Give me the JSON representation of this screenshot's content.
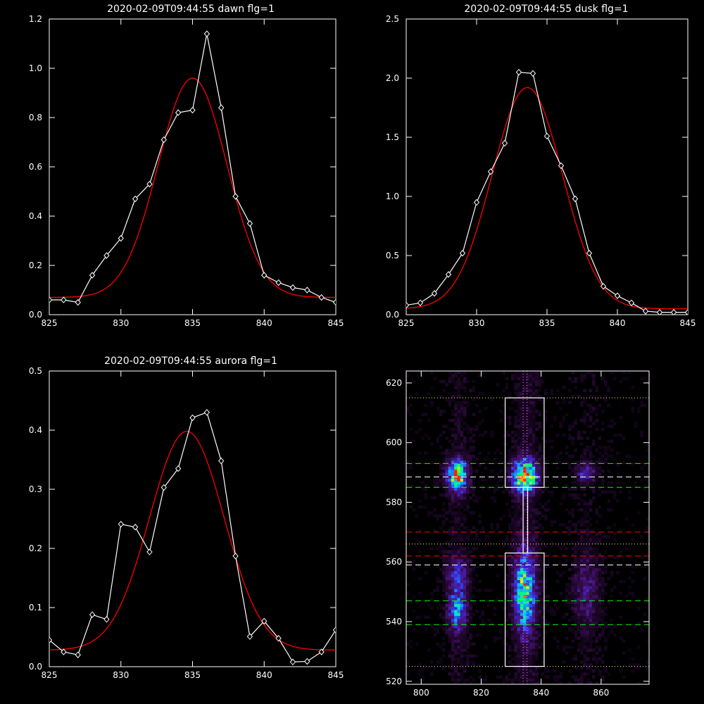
{
  "chart_data": [
    {
      "type": "line",
      "title": "2020-02-09T09:44:55 dawn flg=1",
      "xlim": [
        825,
        845
      ],
      "ylim": [
        0.0,
        1.2
      ],
      "xticks": [
        825,
        830,
        835,
        840,
        845
      ],
      "yticks": [
        "0.0",
        "0.2",
        "0.4",
        "0.6",
        "0.8",
        "1.0",
        "1.2"
      ],
      "series": [
        {
          "style": "white-line-diamonds",
          "color": "#ffffff",
          "x": [
            825,
            826,
            827,
            828,
            829,
            830,
            831,
            832,
            833,
            834,
            835,
            836,
            837,
            838,
            839,
            840,
            841,
            842,
            843,
            844,
            845
          ],
          "y": [
            0.06,
            0.06,
            0.05,
            0.16,
            0.24,
            0.31,
            0.47,
            0.53,
            0.71,
            0.82,
            0.83,
            1.14,
            0.84,
            0.48,
            0.37,
            0.16,
            0.13,
            0.11,
            0.1,
            0.07,
            0.05
          ]
        },
        {
          "style": "gaussian-fit",
          "color": "#ff0000",
          "gauss": {
            "amplitude": 0.89,
            "center": 835.0,
            "sigma": 2.4,
            "offset": 0.07
          }
        }
      ]
    },
    {
      "type": "line",
      "title": "2020-02-09T09:44:55 dusk flg=1",
      "xlim": [
        825,
        845
      ],
      "ylim": [
        0.0,
        2.5
      ],
      "xticks": [
        825,
        830,
        835,
        840,
        845
      ],
      "yticks": [
        "0.0",
        "0.5",
        "1.0",
        "1.5",
        "2.0",
        "2.5"
      ],
      "series": [
        {
          "style": "white-line-diamonds",
          "color": "#ffffff",
          "x": [
            825,
            826,
            827,
            828,
            829,
            830,
            831,
            832,
            833,
            834,
            835,
            836,
            837,
            838,
            839,
            840,
            841,
            842,
            843,
            844,
            845
          ],
          "y": [
            0.08,
            0.1,
            0.18,
            0.34,
            0.52,
            0.95,
            1.21,
            1.45,
            2.05,
            2.04,
            1.51,
            1.26,
            0.98,
            0.52,
            0.24,
            0.16,
            0.1,
            0.03,
            0.02,
            0.02,
            0.02
          ]
        },
        {
          "style": "gaussian-fit",
          "color": "#ff0000",
          "gauss": {
            "amplitude": 1.87,
            "center": 833.6,
            "sigma": 2.5,
            "offset": 0.05
          }
        }
      ]
    },
    {
      "type": "line",
      "title": "2020-02-09T09:44:55 aurora flg=1",
      "xlim": [
        825,
        845
      ],
      "ylim": [
        0.0,
        0.5
      ],
      "xticks": [
        825,
        830,
        835,
        840,
        845
      ],
      "yticks": [
        "0.0",
        "0.1",
        "0.2",
        "0.3",
        "0.4",
        "0.5"
      ],
      "series": [
        {
          "style": "white-line-diamonds",
          "color": "#ffffff",
          "x": [
            825,
            826,
            827,
            828,
            829,
            830,
            831,
            832,
            833,
            834,
            835,
            836,
            837,
            838,
            839,
            840,
            841,
            842,
            843,
            844,
            845
          ],
          "y": [
            0.045,
            0.025,
            0.02,
            0.088,
            0.08,
            0.241,
            0.236,
            0.194,
            0.303,
            0.335,
            0.421,
            0.43,
            0.348,
            0.187,
            0.051,
            0.077,
            0.048,
            0.008,
            0.009,
            0.025,
            0.062
          ]
        },
        {
          "style": "gaussian-fit",
          "color": "#ff0000",
          "gauss": {
            "amplitude": 0.37,
            "center": 834.6,
            "sigma": 2.6,
            "offset": 0.028
          }
        }
      ]
    },
    {
      "type": "heatmap",
      "title": "",
      "xlim": [
        795,
        876
      ],
      "ylim": [
        519,
        624
      ],
      "xticks": [
        800,
        820,
        840,
        860
      ],
      "yticks": [
        520,
        540,
        560,
        580,
        600,
        620
      ],
      "colormap": [
        "#000000",
        "#2a0a3a",
        "#4a1580",
        "#3a2ae0",
        "#1a8cff",
        "#00e0e0",
        "#00ff66",
        "#e0ff00",
        "#ff2000"
      ],
      "blobs": [
        {
          "x": 812,
          "y": 589,
          "sx": 2.2,
          "sy": 3.5,
          "peak": 0.8
        },
        {
          "x": 834.5,
          "y": 589,
          "sx": 2.6,
          "sy": 3.5,
          "peak": 1.0
        },
        {
          "x": 855,
          "y": 590,
          "sx": 2.0,
          "sy": 2.0,
          "peak": 0.3
        },
        {
          "x": 834.5,
          "y": 550,
          "sx": 2.4,
          "sy": 9.0,
          "peak": 0.65
        },
        {
          "x": 812,
          "y": 544,
          "sx": 2.0,
          "sy": 5.0,
          "peak": 0.45
        },
        {
          "x": 812,
          "y": 556,
          "sx": 2.5,
          "sy": 4.0,
          "peak": 0.25
        },
        {
          "x": 855,
          "y": 550,
          "sx": 3.0,
          "sy": 8.0,
          "peak": 0.18
        }
      ],
      "boxes": [
        {
          "x0": 828,
          "x1": 841,
          "y0": 585,
          "y1": 615
        },
        {
          "x0": 828,
          "x1": 841,
          "y0": 525,
          "y1": 563
        }
      ],
      "connector": {
        "x0": 834,
        "x1": 835.5,
        "y0": 563,
        "y1": 585
      },
      "hlines": [
        {
          "y": 593,
          "color": "#00ff00",
          "dash": "dashed"
        },
        {
          "y": 588.5,
          "color": "#ffffff",
          "dash": "dashed"
        },
        {
          "y": 585,
          "color": "#00ff00",
          "dash": "dashed"
        },
        {
          "y": 570,
          "color": "#ff0000",
          "dash": "dashed"
        },
        {
          "y": 562,
          "color": "#ff0000",
          "dash": "dashed"
        },
        {
          "y": 559,
          "color": "#ffffff",
          "dash": "dashed"
        },
        {
          "y": 547,
          "color": "#00ff00",
          "dash": "dashed"
        },
        {
          "y": 539,
          "color": "#00ff00",
          "dash": "dashed"
        },
        {
          "y": 615,
          "color": "#ffff80",
          "dash": "dotted"
        },
        {
          "y": 566,
          "color": "#ffff80",
          "dash": "dotted"
        },
        {
          "y": 525,
          "color": "#ffff80",
          "dash": "dotted"
        }
      ],
      "vlines": [
        {
          "x": 834,
          "color": "#ff80ff",
          "dash": "dotted"
        },
        {
          "x": 835.3,
          "color": "#ff80ff",
          "dash": "dotted"
        }
      ]
    }
  ]
}
